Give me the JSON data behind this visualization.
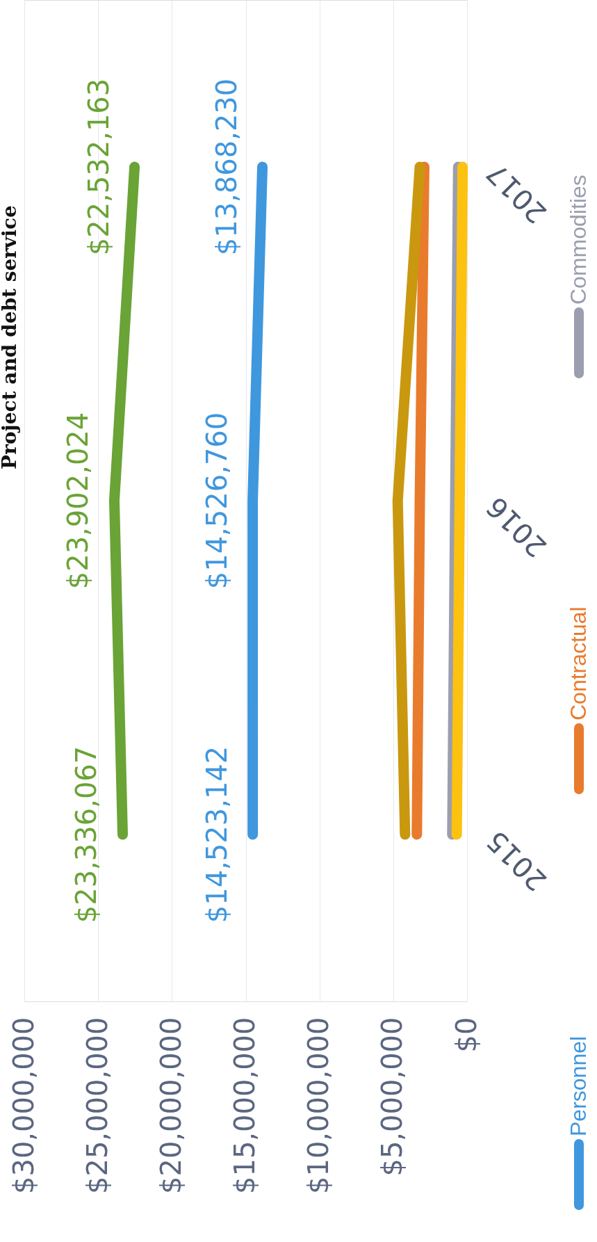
{
  "chart_data": {
    "type": "line",
    "orientation": "horizontal",
    "title": "Project and debt service",
    "categories": [
      "2017",
      "2016",
      "2015"
    ],
    "series": [
      {
        "color": "#6aa336",
        "values": [
          22532163,
          23902024,
          23336067
        ],
        "value_labels": [
          "$22,532,163",
          "$23,902,024",
          "$23,336,067"
        ]
      },
      {
        "name": "Personnel",
        "color": "#3f97de",
        "values": [
          13868230,
          14526760,
          14523142
        ],
        "value_labels": [
          "$13,868,230",
          "$14,526,760",
          "$14,523,142"
        ]
      },
      {
        "name": "Contractual",
        "color": "#e97b2d",
        "values": [
          2900000,
          3200000,
          3400000
        ]
      },
      {
        "name": "Commodities",
        "color": "#9a9eae",
        "values": [
          600000,
          800000,
          1000000
        ]
      },
      {
        "color": "#c9980f",
        "values": [
          3200000,
          4700000,
          4200000
        ]
      },
      {
        "color": "#fdc10f",
        "values": [
          300000,
          500000,
          700000
        ]
      }
    ],
    "xlim": [
      30000000,
      0
    ],
    "xticks": [
      {
        "value": 30000000,
        "label": "$30,000,000"
      },
      {
        "value": 25000000,
        "label": "$25,000,000"
      },
      {
        "value": 20000000,
        "label": "$20,000,000"
      },
      {
        "value": 15000000,
        "label": "$15,000,000"
      },
      {
        "value": 10000000,
        "label": "$10,000,000"
      },
      {
        "value": 5000000,
        "label": "$5,000,000"
      },
      {
        "value": 0,
        "label": "$0"
      }
    ],
    "grid": "x",
    "legend": "right",
    "line_style": "solid"
  }
}
